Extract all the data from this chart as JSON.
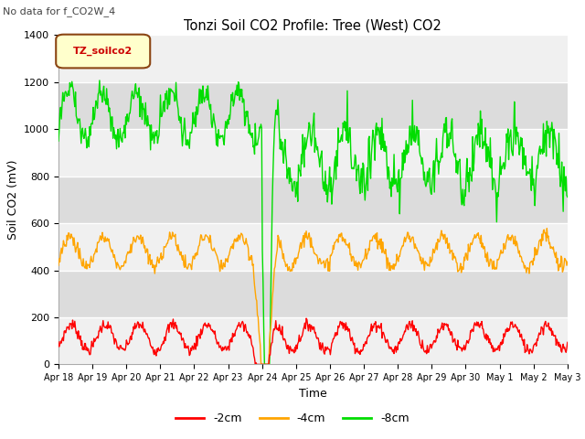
{
  "title": "Tonzi Soil CO2 Profile: Tree (West) CO2",
  "subtitle": "No data for f_CO2W_4",
  "ylabel": "Soil CO2 (mV)",
  "xlabel": "Time",
  "legend_label": "TZ_soilco2",
  "ylim": [
    0,
    1400
  ],
  "x_tick_labels": [
    "Apr 18",
    "Apr 19",
    "Apr 20",
    "Apr 21",
    "Apr 22",
    "Apr 23",
    "Apr 24",
    "Apr 25",
    "Apr 26",
    "Apr 27",
    "Apr 28",
    "Apr 29",
    "Apr 30",
    "May 1",
    "May 2",
    "May 3"
  ],
  "line_2cm_color": "#ff0000",
  "line_4cm_color": "#ffa500",
  "line_8cm_color": "#00dd00",
  "bg_color": "#ffffff",
  "legend_box_color": "#ffffcc",
  "legend_box_edge": "#8B4513"
}
